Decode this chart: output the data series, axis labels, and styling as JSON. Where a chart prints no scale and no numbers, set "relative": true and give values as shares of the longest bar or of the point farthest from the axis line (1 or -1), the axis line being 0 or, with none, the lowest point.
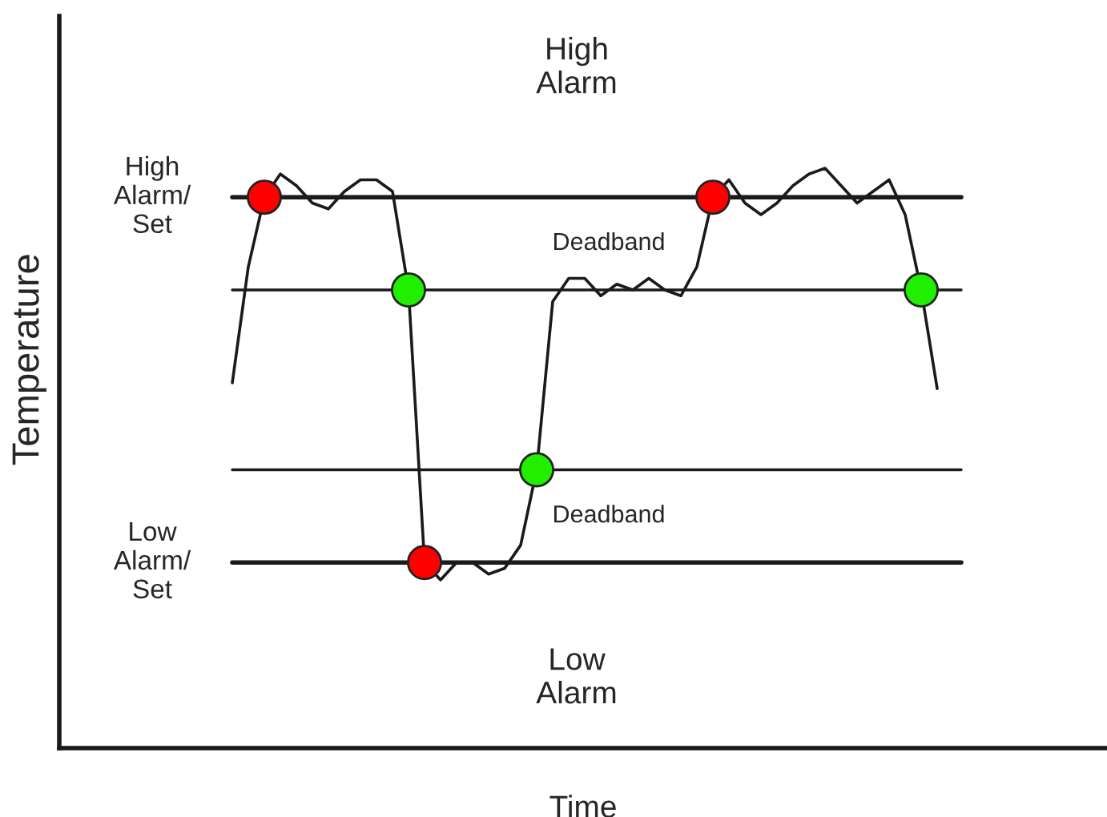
{
  "chart_data": {
    "type": "line",
    "relative": true,
    "xlabel": "Time",
    "ylabel": "Temperature",
    "categories": [
      null,
      null,
      null,
      null,
      null,
      null,
      null,
      null,
      null,
      null,
      null,
      null,
      null,
      null,
      null,
      null,
      null,
      null,
      null,
      null,
      null,
      null,
      null,
      null,
      null,
      null,
      null,
      null,
      null,
      null,
      null,
      null,
      null,
      null,
      null,
      null,
      null,
      null,
      null,
      null,
      null,
      null,
      null,
      null,
      null
    ],
    "series": [
      {
        "color": "#1a1a1a",
        "values": [
          0.63,
          0.83,
          0.95,
          0.99,
          0.97,
          0.94,
          0.93,
          0.96,
          0.98,
          0.98,
          0.96,
          0.79,
          0.32,
          0.29,
          0.32,
          0.32,
          0.3,
          0.31,
          0.35,
          0.48,
          0.77,
          0.81,
          0.81,
          0.78,
          0.8,
          0.79,
          0.81,
          0.79,
          0.78,
          0.83,
          0.95,
          0.98,
          0.94,
          0.92,
          0.94,
          0.97,
          0.99,
          1.0,
          0.97,
          0.94,
          0.96,
          0.98,
          0.92,
          0.79,
          0.62
        ],
        "colors": [
          null,
          null,
          "#ff0000",
          null,
          null,
          null,
          null,
          null,
          null,
          null,
          null,
          "#22ee00",
          "#ff0000",
          null,
          null,
          null,
          null,
          null,
          null,
          "#22ee00",
          null,
          null,
          null,
          null,
          null,
          null,
          null,
          null,
          null,
          null,
          "#ff0000",
          null,
          null,
          null,
          null,
          null,
          null,
          null,
          null,
          null,
          null,
          null,
          null,
          "#22ee00",
          null
        ]
      }
    ],
    "ref_lines": [
      {
        "axis": "y",
        "value": 0.95,
        "label": "High Alarm/ Set",
        "color": "#1a1a1a"
      },
      {
        "axis": "y",
        "value": 0.79,
        "label": null,
        "color": "#1a1a1a"
      },
      {
        "axis": "y",
        "value": 0.48,
        "label": null,
        "color": "#1a1a1a"
      },
      {
        "axis": "y",
        "value": 0.32,
        "label": "Low Alarm/ Set",
        "color": "#1a1a1a"
      }
    ],
    "annotations": [
      "High Alarm",
      "Deadband",
      "Deadband",
      "Low Alarm"
    ],
    "legend": false,
    "grid": false
  }
}
